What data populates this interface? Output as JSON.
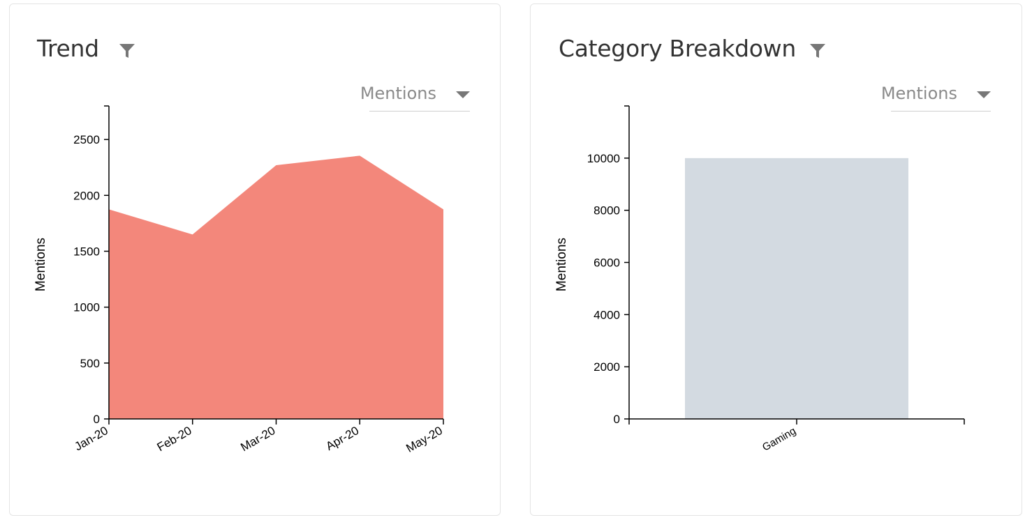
{
  "cards": {
    "trend": {
      "title": "Trend",
      "metric": "Mentions"
    },
    "category": {
      "title": "Category Breakdown",
      "metric": "Mentions"
    }
  },
  "colors": {
    "area": "#f3877b",
    "bar": "#d3dae1",
    "axis": "#000000",
    "icon": "#777777"
  },
  "icons": {
    "filter": "filter-icon",
    "dropdown": "chevron-down-icon"
  },
  "chart_data": [
    {
      "type": "area",
      "title": "Trend",
      "xlabel": "",
      "ylabel": "Mentions",
      "categories": [
        "Jan-20",
        "Feb-20",
        "Mar-20",
        "Apr-20",
        "May-20"
      ],
      "values": [
        1875,
        1650,
        2270,
        2355,
        1875
      ],
      "ylim": [
        0,
        2800
      ],
      "yticks": [
        0,
        500,
        1000,
        1500,
        2000,
        2500
      ],
      "grid": false
    },
    {
      "type": "bar",
      "title": "Category Breakdown",
      "xlabel": "",
      "ylabel": "Mentions",
      "categories": [
        "Gaming"
      ],
      "values": [
        10000
      ],
      "ylim": [
        0,
        12000
      ],
      "yticks": [
        0,
        2000,
        4000,
        6000,
        8000,
        10000
      ],
      "grid": false
    }
  ]
}
